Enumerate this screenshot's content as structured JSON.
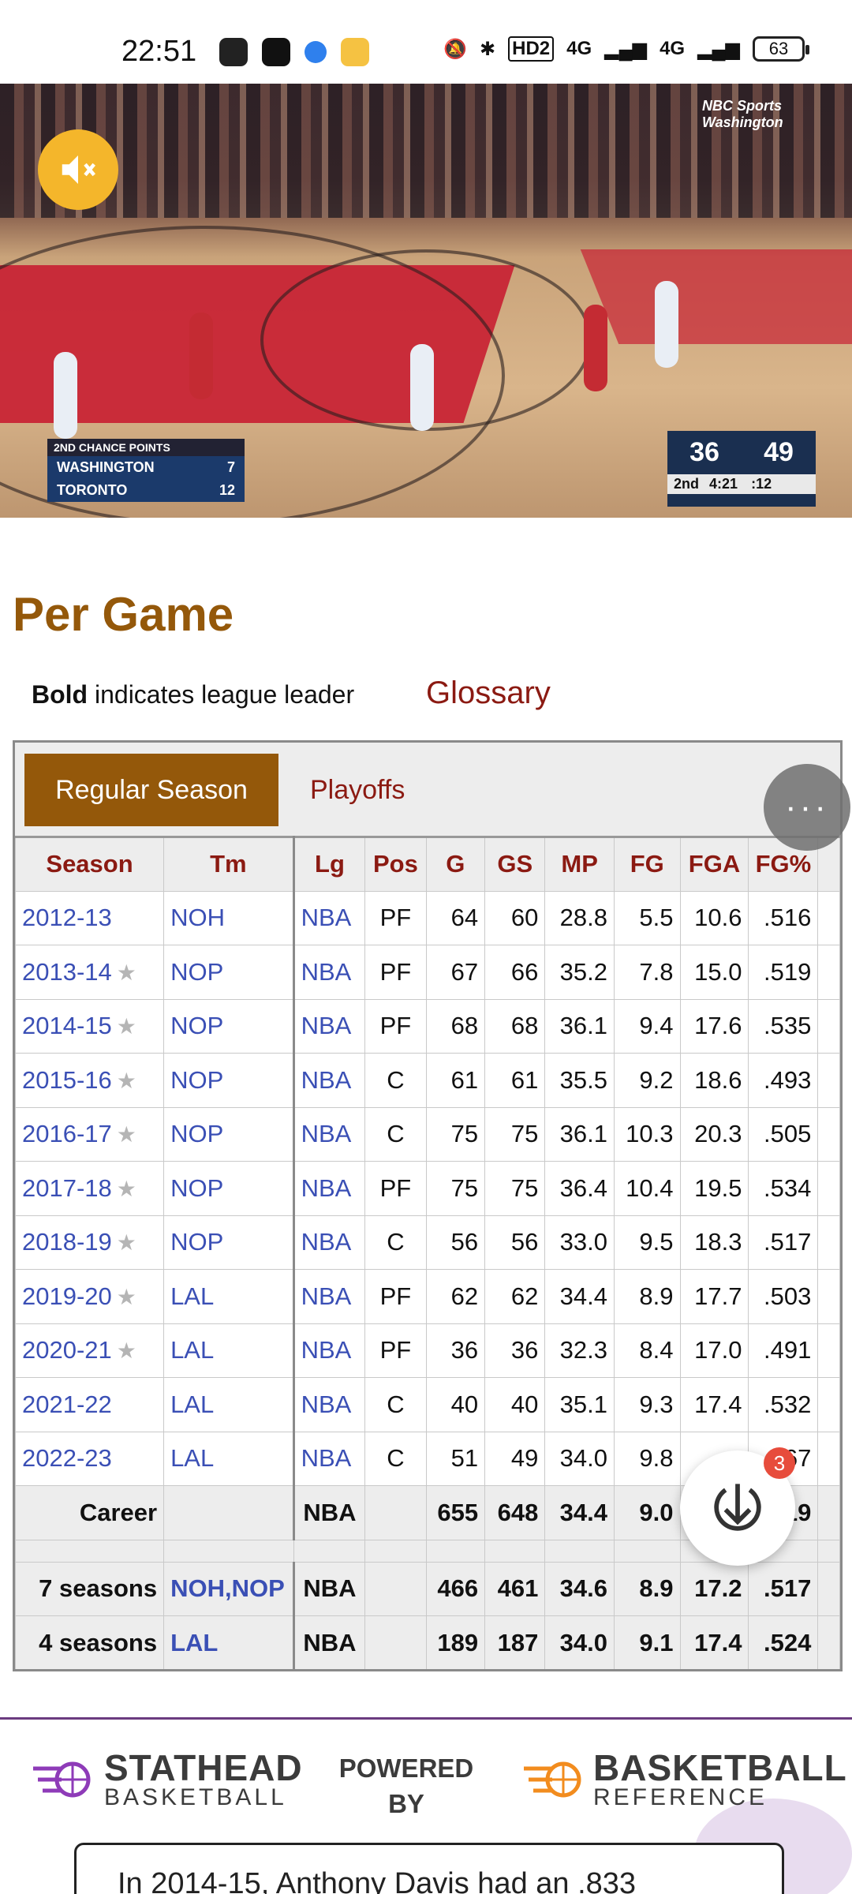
{
  "status_bar": {
    "time": "22:51",
    "network_labels": [
      "HD2",
      "4G",
      "4G"
    ],
    "battery": "63"
  },
  "video": {
    "network": "NBC Sports Washington",
    "left_box": {
      "header": "2ND CHANCE POINTS",
      "rows": [
        {
          "team": "WASHINGTON",
          "value": "7"
        },
        {
          "team": "TORONTO",
          "value": "12"
        }
      ]
    },
    "scoreboard": {
      "home": "36",
      "away": "49",
      "period": "2nd",
      "clock": "4:21",
      "shot_clock": ":12"
    }
  },
  "section": {
    "title": "Per Game",
    "legend_bold": "Bold",
    "legend_rest": " indicates league leader",
    "glossary": "Glossary"
  },
  "tabs": {
    "regular": "Regular Season",
    "playoffs": "Playoffs"
  },
  "table": {
    "headers": [
      "Season",
      "Tm",
      "Lg",
      "Pos",
      "G",
      "GS",
      "MP",
      "FG",
      "FGA",
      "FG%"
    ],
    "rows": [
      {
        "season": "2012-13",
        "star": false,
        "tm": "NOH",
        "lg": "NBA",
        "pos": "PF",
        "g": "64",
        "gs": "60",
        "mp": "28.8",
        "fg": "5.5",
        "fga": "10.6",
        "fgp": ".516"
      },
      {
        "season": "2013-14",
        "star": true,
        "tm": "NOP",
        "lg": "NBA",
        "pos": "PF",
        "g": "67",
        "gs": "66",
        "mp": "35.2",
        "fg": "7.8",
        "fga": "15.0",
        "fgp": ".519"
      },
      {
        "season": "2014-15",
        "star": true,
        "tm": "NOP",
        "lg": "NBA",
        "pos": "PF",
        "g": "68",
        "gs": "68",
        "mp": "36.1",
        "fg": "9.4",
        "fga": "17.6",
        "fgp": ".535"
      },
      {
        "season": "2015-16",
        "star": true,
        "tm": "NOP",
        "lg": "NBA",
        "pos": "C",
        "g": "61",
        "gs": "61",
        "mp": "35.5",
        "fg": "9.2",
        "fga": "18.6",
        "fgp": ".493"
      },
      {
        "season": "2016-17",
        "star": true,
        "tm": "NOP",
        "lg": "NBA",
        "pos": "C",
        "g": "75",
        "gs": "75",
        "mp": "36.1",
        "fg": "10.3",
        "fga": "20.3",
        "fgp": ".505"
      },
      {
        "season": "2017-18",
        "star": true,
        "tm": "NOP",
        "lg": "NBA",
        "pos": "PF",
        "g": "75",
        "gs": "75",
        "mp": "36.4",
        "fg": "10.4",
        "fga": "19.5",
        "fgp": ".534"
      },
      {
        "season": "2018-19",
        "star": true,
        "tm": "NOP",
        "lg": "NBA",
        "pos": "C",
        "g": "56",
        "gs": "56",
        "mp": "33.0",
        "fg": "9.5",
        "fga": "18.3",
        "fgp": ".517"
      },
      {
        "season": "2019-20",
        "star": true,
        "tm": "LAL",
        "lg": "NBA",
        "pos": "PF",
        "g": "62",
        "gs": "62",
        "mp": "34.4",
        "fg": "8.9",
        "fga": "17.7",
        "fgp": ".503"
      },
      {
        "season": "2020-21",
        "star": true,
        "tm": "LAL",
        "lg": "NBA",
        "pos": "PF",
        "g": "36",
        "gs": "36",
        "mp": "32.3",
        "fg": "8.4",
        "fga": "17.0",
        "fgp": ".491"
      },
      {
        "season": "2021-22",
        "star": false,
        "tm": "LAL",
        "lg": "NBA",
        "pos": "C",
        "g": "40",
        "gs": "40",
        "mp": "35.1",
        "fg": "9.3",
        "fga": "17.4",
        "fgp": ".532"
      },
      {
        "season": "2022-23",
        "star": false,
        "tm": "LAL",
        "lg": "NBA",
        "pos": "C",
        "g": "51",
        "gs": "49",
        "mp": "34.0",
        "fg": "9.8",
        "fga": "",
        "fgp": ".567"
      }
    ],
    "totals": [
      {
        "season": "Career",
        "tm": "",
        "lg": "NBA",
        "pos": "",
        "g": "655",
        "gs": "648",
        "mp": "34.4",
        "fg": "9.0",
        "fga": "",
        "fgp": ".519"
      },
      {
        "season": "7 seasons",
        "tm": "NOH,NOP",
        "lg": "NBA",
        "pos": "",
        "g": "466",
        "gs": "461",
        "mp": "34.6",
        "fg": "8.9",
        "fga": "17.2",
        "fgp": ".517"
      },
      {
        "season": "4 seasons",
        "tm": "LAL",
        "lg": "NBA",
        "pos": "",
        "g": "189",
        "gs": "187",
        "mp": "34.0",
        "fg": "9.1",
        "fga": "17.4",
        "fgp": ".524"
      }
    ]
  },
  "fab": {
    "badge_count": "3"
  },
  "banner": {
    "left_big": "STATHEAD",
    "left_small": "BASKETBALL",
    "powered_by": "POWERED BY",
    "right_big": "BASKETBALL",
    "right_small": "REFERENCE",
    "quote": "In 2014-15, Anthony Davis had an .833"
  },
  "colors": {
    "accent_brown": "#94580a",
    "link_red": "#8b1a12",
    "link_blue": "#3a4fb5"
  }
}
